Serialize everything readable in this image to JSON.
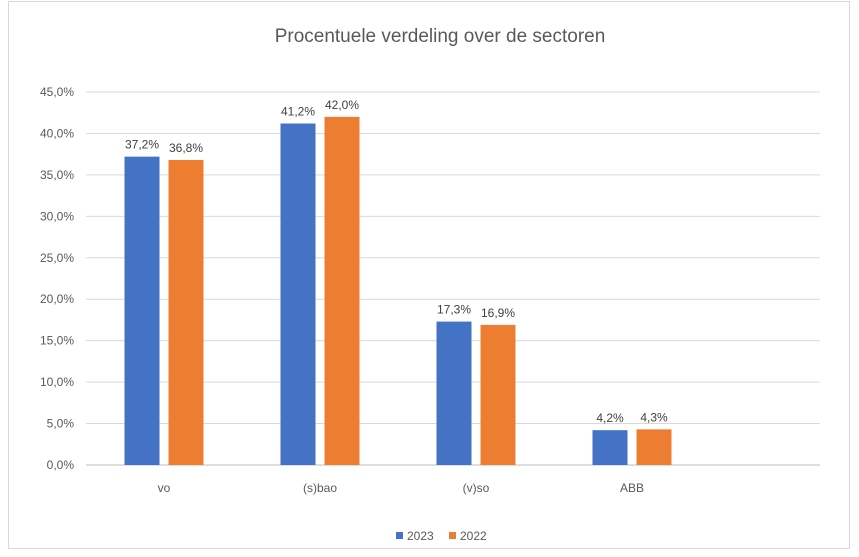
{
  "chart_data": {
    "type": "bar",
    "title": "Procentuele verdeling over de sectoren",
    "categories": [
      "vo",
      "(s)bao",
      "(v)so",
      "ABB"
    ],
    "series": [
      {
        "name": "2023",
        "color": "#4472C4",
        "values": [
          37.2,
          41.2,
          17.3,
          4.2
        ],
        "labels": [
          "37,2%",
          "41,2%",
          "17,3%",
          "4,2%"
        ]
      },
      {
        "name": "2022",
        "color": "#ED7D31",
        "values": [
          36.8,
          42.0,
          16.9,
          4.3
        ],
        "labels": [
          "36,8%",
          "42,0%",
          "16,9%",
          "4,3%"
        ]
      }
    ],
    "y_ticks": [
      "0,0%",
      "5,0%",
      "10,0%",
      "15,0%",
      "20,0%",
      "25,0%",
      "30,0%",
      "35,0%",
      "40,0%",
      "45,0%"
    ],
    "ylim": [
      0,
      45
    ],
    "grid": true,
    "legend": "bottom"
  }
}
